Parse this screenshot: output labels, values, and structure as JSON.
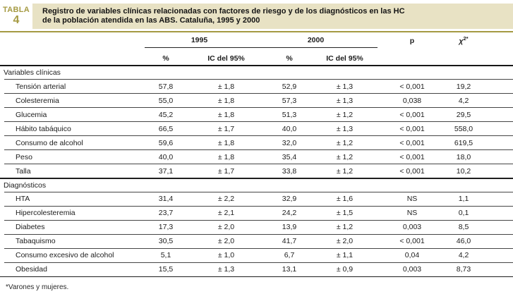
{
  "header": {
    "label_word": "TABLA",
    "label_number": "4",
    "title": "Registro de variables clínicas relacionadas con factores de riesgo y de los diagnósticos en las HC\nde la población atendida en las ABS. Cataluña, 1995 y 2000",
    "bar_color": "#e8e2c4",
    "accent_color": "#a59a42"
  },
  "columns": {
    "year_1995": "1995",
    "year_2000": "2000",
    "pct_1995": "%",
    "ci_1995": "IC del 95%",
    "pct_2000": "%",
    "ci_2000": "IC del 95%",
    "p_label": "p",
    "chi_base": "χ",
    "chi_sup": "2*"
  },
  "sections": [
    {
      "label": "Variables clínicas",
      "rows": [
        {
          "label": "Tensión arterial",
          "values": [
            "57,8",
            "± 1,8",
            "52,9",
            "± 1,3",
            "< 0,001",
            "19,2"
          ]
        },
        {
          "label": "Colesteremia",
          "values": [
            "55,0",
            "± 1,8",
            "57,3",
            "± 1,3",
            "0,038",
            "4,2"
          ]
        },
        {
          "label": "Glucemia",
          "values": [
            "45,2",
            "± 1,8",
            "51,3",
            "± 1,2",
            "< 0,001",
            "29,5"
          ]
        },
        {
          "label": "Hábito tabáquico",
          "values": [
            "66,5",
            "± 1,7",
            "40,0",
            "± 1,3",
            "< 0,001",
            "558,0"
          ]
        },
        {
          "label": "Consumo de alcohol",
          "values": [
            "59,6",
            "± 1,8",
            "32,0",
            "± 1,2",
            "< 0,001",
            "619,5"
          ]
        },
        {
          "label": "Peso",
          "values": [
            "40,0",
            "± 1,8",
            "35,4",
            "± 1,2",
            "< 0,001",
            "18,0"
          ]
        },
        {
          "label": "Talla",
          "values": [
            "37,1",
            "± 1,7",
            "33,8",
            "± 1,2",
            "< 0,001",
            "10,2"
          ]
        }
      ]
    },
    {
      "label": "Diagnósticos",
      "rows": [
        {
          "label": "HTA",
          "values": [
            "31,4",
            "± 2,2",
            "32,9",
            "± 1,6",
            "NS",
            "1,1"
          ]
        },
        {
          "label": "Hipercolesteremia",
          "values": [
            "23,7",
            "± 2,1",
            "24,2",
            "± 1,5",
            "NS",
            "0,1"
          ]
        },
        {
          "label": "Diabetes",
          "values": [
            "17,3",
            "± 2,0",
            "13,9",
            "± 1,2",
            "0,003",
            "8,5"
          ]
        },
        {
          "label": "Tabaquismo",
          "values": [
            "30,5",
            "± 2,0",
            "41,7",
            "± 2,0",
            "< 0,001",
            "46,0"
          ]
        },
        {
          "label": "Consumo excesivo de alcohol",
          "values": [
            "5,1",
            "± 1,0",
            "6,7",
            "± 1,1",
            "0,04",
            "4,2"
          ]
        },
        {
          "label": "Obesidad",
          "values": [
            "15,5",
            "± 1,3",
            "13,1",
            "± 0,9",
            "0,003",
            "8,73"
          ]
        }
      ]
    }
  ],
  "footnote": "*Varones y mujeres."
}
